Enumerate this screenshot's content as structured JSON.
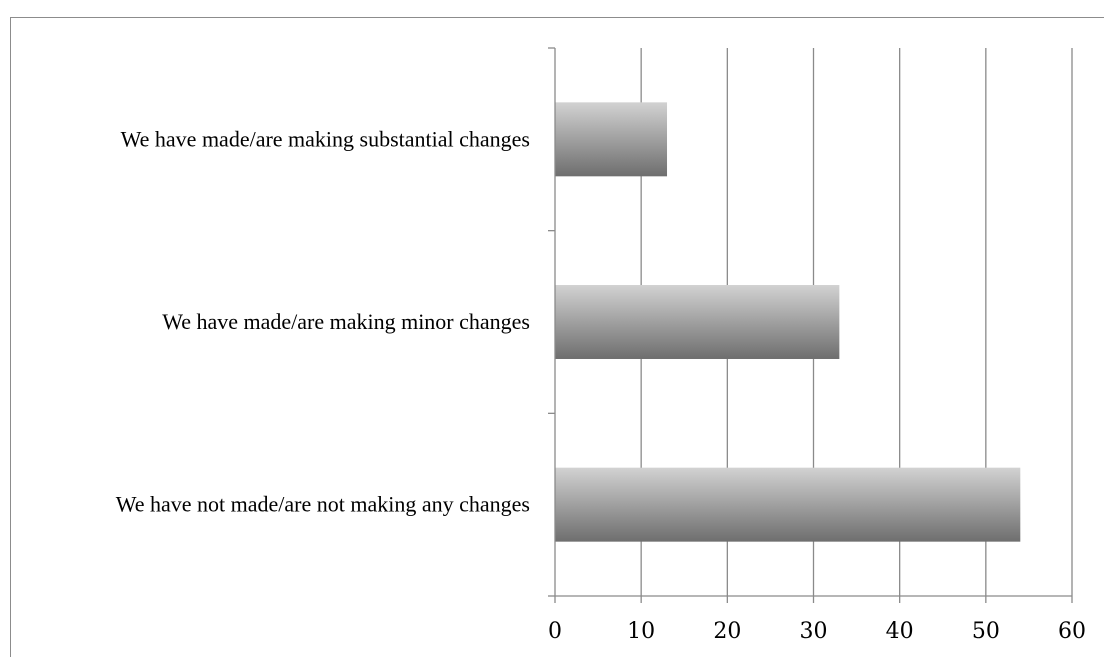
{
  "chart_data": {
    "type": "bar",
    "orientation": "horizontal",
    "categories": [
      "We have made/are making substantial changes",
      "We have made/are making minor changes",
      "We have not made/are not making any changes"
    ],
    "values": [
      13,
      33,
      54
    ],
    "title": "",
    "xlabel": "",
    "ylabel": "",
    "xlim": [
      0,
      60
    ],
    "xticks": [
      0,
      10,
      20,
      30,
      40,
      50,
      60
    ],
    "grid": "vertical",
    "legend": "none",
    "bar_color_light": "#d2d2d2",
    "bar_color_dark": "#6e6e6e"
  }
}
